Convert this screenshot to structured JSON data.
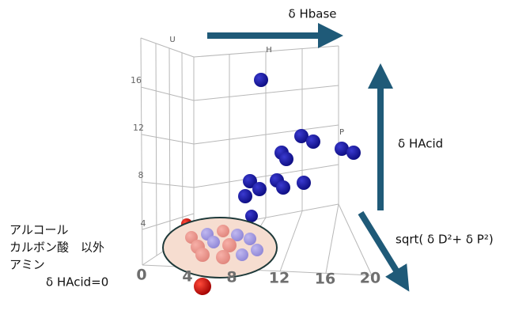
{
  "annotations": {
    "hbase": "δ Hbase",
    "hacid": "δ HAcid",
    "sqrt": "sqrt( δ D²+ δ P²)",
    "left_lines": [
      "アルコール",
      "カルボン酸　以外",
      "アミン",
      "δ HAcid=0"
    ]
  },
  "axes": {
    "x_ticks": [
      "0",
      "4",
      "8",
      "12",
      "16",
      "20"
    ],
    "y_ticks": [
      "16",
      "12",
      "8",
      "4"
    ],
    "labels": {
      "h": "H",
      "p": "P",
      "u": "U"
    }
  }
}
